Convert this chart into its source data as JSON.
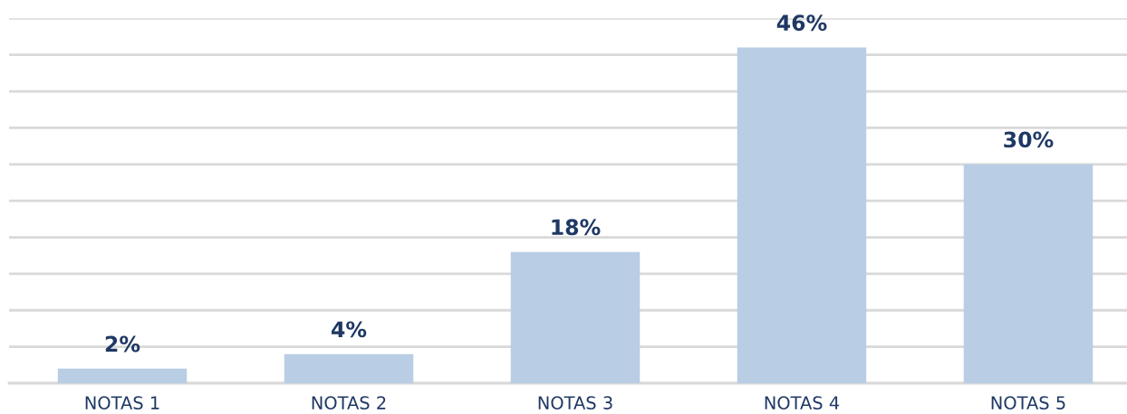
{
  "chart_data": {
    "type": "bar",
    "categories": [
      "NOTAS 1",
      "NOTAS 2",
      "NOTAS 3",
      "NOTAS 4",
      "NOTAS 5"
    ],
    "values": [
      2,
      4,
      18,
      46,
      30
    ],
    "value_labels": [
      "2%",
      "4%",
      "18%",
      "46%",
      "30%"
    ],
    "color": "#b9cde4",
    "ylim": [
      0,
      50
    ],
    "yticks": [
      {
        "value": 0,
        "label": null
      },
      {
        "value": 5,
        "label": null
      },
      {
        "value": 10,
        "label": null
      },
      {
        "value": 15,
        "label": null
      },
      {
        "value": 20,
        "label": null
      },
      {
        "value": 25,
        "label": null
      },
      {
        "value": 30,
        "label": null
      },
      {
        "value": 35,
        "label": null
      },
      {
        "value": 40,
        "label": null
      },
      {
        "value": 45,
        "label": null
      },
      {
        "value": 50,
        "label": null
      }
    ],
    "tick_labels": "x",
    "grid": "y",
    "legend": false
  }
}
